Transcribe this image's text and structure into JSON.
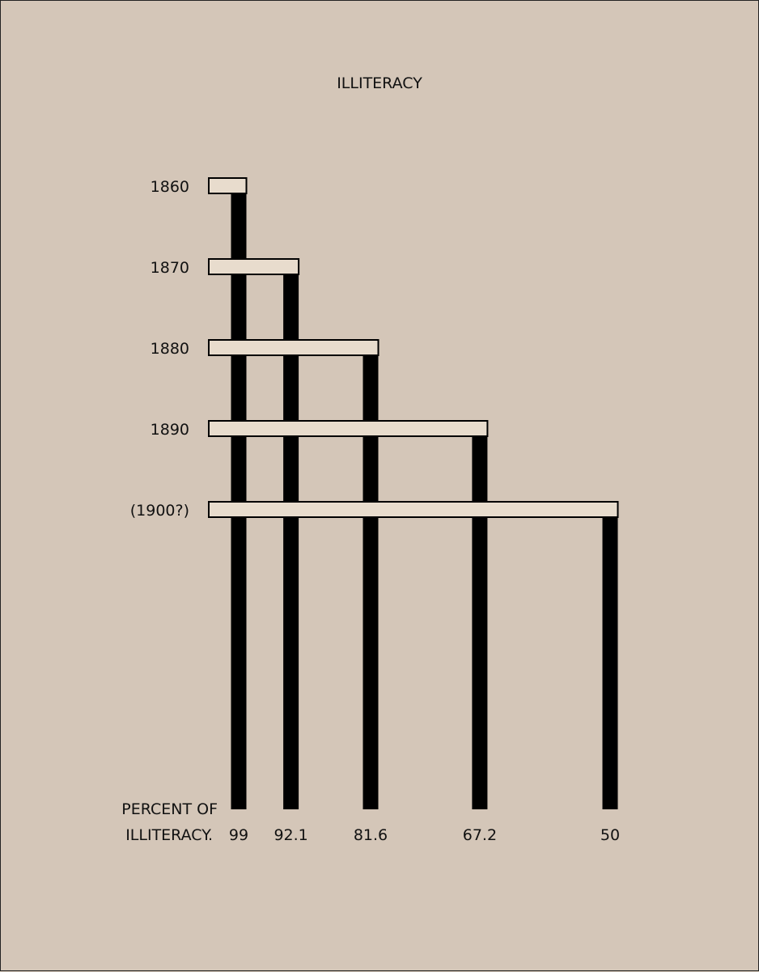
{
  "chart_data": {
    "type": "bar",
    "title": "ILLITERACY",
    "categories": [
      "1860",
      "1870",
      "1880",
      "1890",
      "(1900?)"
    ],
    "values": [
      99,
      92.1,
      81.6,
      67.2,
      50
    ],
    "value_labels": [
      "99",
      "92.1",
      "81.6",
      "67.2",
      "50"
    ],
    "axis_label_line1": "PERCENT OF",
    "axis_label_line2": "ILLITERACY.",
    "colors": {
      "background": "#d4c6b8",
      "bar_fill": "#e8dccd",
      "post": "#000000",
      "text": "#111111"
    }
  }
}
